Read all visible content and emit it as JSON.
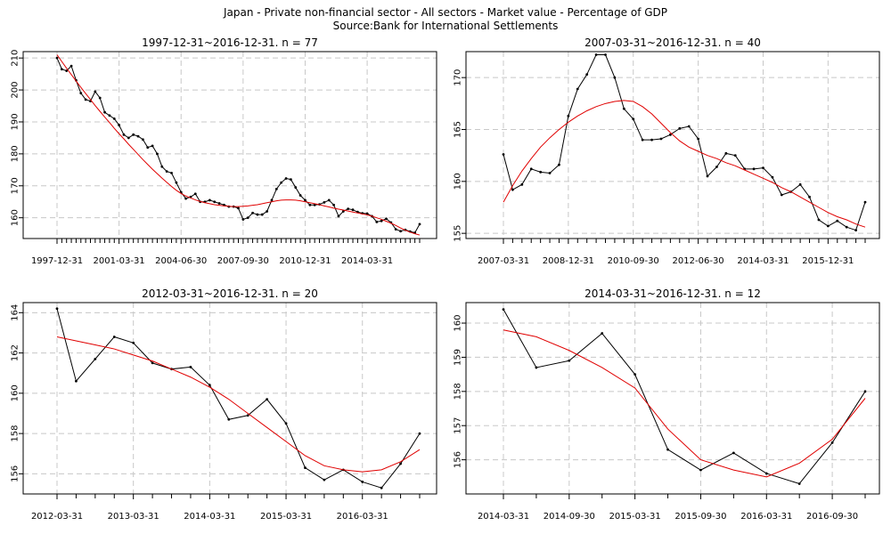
{
  "title": "Japan - Private non-financial sector - All sectors - Market value - Percentage of GDP",
  "subtitle": "Source:Bank for International Settlements",
  "colors": {
    "series": "#000000",
    "trend": "#e00000",
    "grid": "#c8c8c8",
    "frame": "#000000"
  },
  "chart_data": [
    {
      "type": "line",
      "title": "1997-12-31~2016-12-31. n = 77",
      "xlabel": "",
      "ylabel": "",
      "x_tick_labels": [
        "1997-12-31",
        "2001-03-31",
        "2004-06-30",
        "2007-09-30",
        "2010-12-31",
        "2014-03-31"
      ],
      "y_ticks": [
        160,
        170,
        180,
        190,
        200,
        210
      ],
      "ylim": [
        153.5,
        212.0
      ],
      "grid": true,
      "series": [
        {
          "values": [
            210.0,
            206.5,
            206.0,
            207.5,
            203.0,
            199.0,
            197.0,
            196.5,
            199.5,
            197.5,
            193.0,
            192.0,
            191.0,
            189.0,
            186.0,
            185.0,
            186.0,
            185.5,
            184.5,
            182.0,
            182.5,
            180.0,
            176.0,
            174.5,
            174.0,
            171.0,
            168.0,
            166.0,
            166.5,
            167.5,
            165.0,
            165.0,
            165.5,
            165.0,
            164.5,
            164.0,
            163.5,
            163.5,
            163.0,
            159.5,
            160.0,
            161.5,
            161.0,
            161.0,
            162.0,
            165.5,
            169.0,
            171.0,
            172.3,
            172.0,
            169.5,
            167.0,
            165.5,
            164.0,
            164.0,
            164.2,
            164.8,
            165.5,
            164.0,
            160.5,
            162.0,
            162.8,
            162.5,
            161.8,
            161.4,
            161.3,
            160.5,
            158.7,
            159.0,
            159.7,
            158.5,
            156.4,
            155.8,
            156.2,
            155.7,
            155.3,
            158.0
          ]
        },
        {
          "values": [
            211.0,
            208.9,
            206.8,
            204.8,
            202.8,
            200.8,
            198.9,
            197.0,
            195.1,
            193.3,
            191.5,
            189.8,
            188.0,
            186.3,
            184.7,
            183.0,
            181.4,
            179.8,
            178.2,
            176.7,
            175.2,
            173.8,
            172.4,
            171.1,
            169.8,
            168.6,
            167.6,
            166.8,
            166.2,
            165.6,
            165.1,
            164.7,
            164.4,
            164.1,
            163.9,
            163.7,
            163.6,
            163.5,
            163.5,
            163.6,
            163.7,
            163.9,
            164.1,
            164.4,
            164.7,
            165.0,
            165.3,
            165.5,
            165.6,
            165.6,
            165.5,
            165.3,
            165.0,
            164.7,
            164.4,
            164.1,
            163.7,
            163.4,
            163.0,
            162.7,
            162.4,
            162.1,
            161.8,
            161.5,
            161.2,
            160.9,
            160.5,
            160.0,
            159.5,
            158.9,
            158.3,
            157.6,
            156.8,
            156.1,
            155.5,
            155.0,
            154.6
          ]
        }
      ]
    },
    {
      "type": "line",
      "title": "2007-03-31~2016-12-31. n = 40",
      "xlabel": "",
      "ylabel": "",
      "x_tick_labels": [
        "2007-03-31",
        "2008-12-31",
        "2010-09-30",
        "2012-06-30",
        "2014-03-31",
        "2015-12-31"
      ],
      "y_ticks": [
        155,
        160,
        165,
        170
      ],
      "ylim": [
        154.5,
        172.5
      ],
      "grid": true,
      "series": [
        {
          "values": [
            162.6,
            159.2,
            159.7,
            161.2,
            160.9,
            160.8,
            161.6,
            166.3,
            168.9,
            170.3,
            172.2,
            172.2,
            170.0,
            167.0,
            166.0,
            164.0,
            164.0,
            164.1,
            164.5,
            165.1,
            165.3,
            164.1,
            160.5,
            161.4,
            162.7,
            162.5,
            161.2,
            161.2,
            161.3,
            160.4,
            158.7,
            159.0,
            159.7,
            158.5,
            156.3,
            155.7,
            156.2,
            155.6,
            155.3,
            158.0
          ]
        },
        {
          "values": [
            158.0,
            159.6,
            161.0,
            162.2,
            163.3,
            164.2,
            165.0,
            165.7,
            166.3,
            166.8,
            167.2,
            167.5,
            167.7,
            167.8,
            167.7,
            167.2,
            166.5,
            165.6,
            164.7,
            163.9,
            163.3,
            162.9,
            162.5,
            162.2,
            161.8,
            161.5,
            161.1,
            160.7,
            160.3,
            159.9,
            159.4,
            159.0,
            158.5,
            158.0,
            157.5,
            157.0,
            156.6,
            156.3,
            155.9,
            155.6
          ]
        }
      ]
    },
    {
      "type": "line",
      "title": "2012-03-31~2016-12-31. n = 20",
      "xlabel": "",
      "ylabel": "",
      "x_tick_labels": [
        "2012-03-31",
        "2013-03-31",
        "2014-03-31",
        "2015-03-31",
        "2016-03-31"
      ],
      "y_ticks": [
        156,
        158,
        160,
        162,
        164
      ],
      "ylim": [
        155.0,
        164.5
      ],
      "grid": true,
      "series": [
        {
          "values": [
            164.2,
            160.6,
            161.7,
            162.8,
            162.5,
            161.5,
            161.2,
            161.3,
            160.4,
            158.7,
            158.9,
            159.7,
            158.5,
            156.3,
            155.7,
            156.2,
            155.6,
            155.3,
            156.5,
            158.0
          ]
        },
        {
          "values": [
            162.8,
            162.6,
            162.4,
            162.2,
            161.9,
            161.6,
            161.2,
            160.8,
            160.3,
            159.7,
            159.0,
            158.3,
            157.6,
            156.9,
            156.4,
            156.2,
            156.1,
            156.2,
            156.6,
            157.2
          ]
        }
      ]
    },
    {
      "type": "line",
      "title": "2014-03-31~2016-12-31. n = 12",
      "xlabel": "",
      "ylabel": "",
      "x_tick_labels": [
        "2014-03-31",
        "2014-09-30",
        "2015-03-31",
        "2015-09-30",
        "2016-03-31",
        "2016-09-30"
      ],
      "y_ticks": [
        156,
        157,
        158,
        159,
        160
      ],
      "ylim": [
        155.0,
        160.6
      ],
      "grid": true,
      "series": [
        {
          "values": [
            160.4,
            158.7,
            158.9,
            159.7,
            158.5,
            156.3,
            155.7,
            156.2,
            155.6,
            155.3,
            156.5,
            158.0
          ]
        },
        {
          "values": [
            159.8,
            159.6,
            159.2,
            158.7,
            158.1,
            156.9,
            156.0,
            155.7,
            155.5,
            155.9,
            156.6,
            157.8
          ]
        }
      ]
    }
  ]
}
